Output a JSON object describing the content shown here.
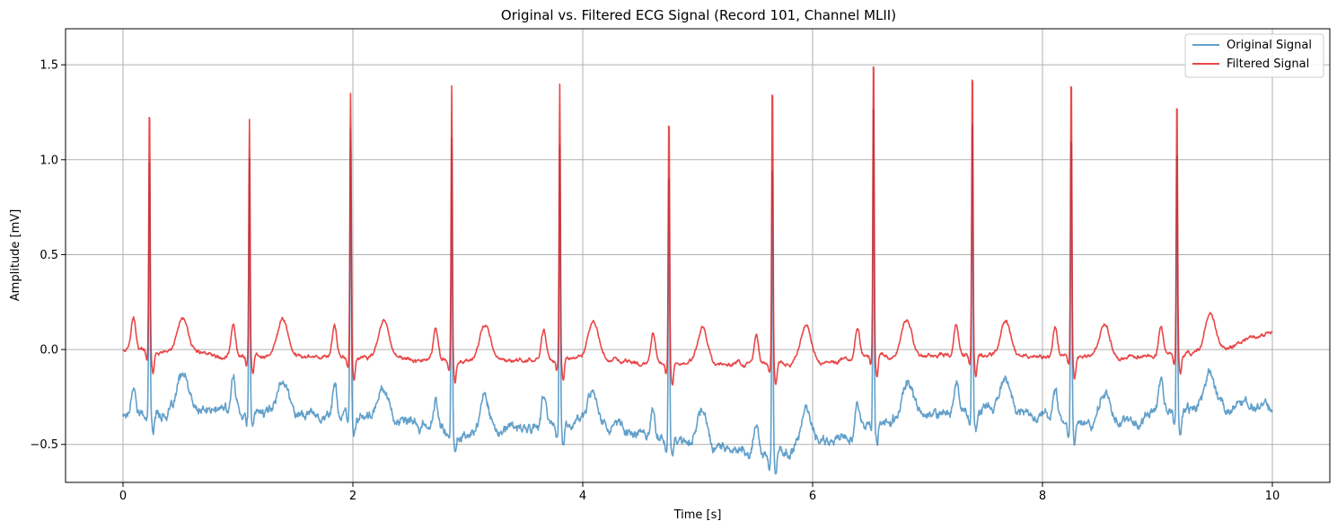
{
  "chart_data": {
    "type": "line",
    "title": "Original vs. Filtered ECG Signal (Record 101, Channel MLII)",
    "xlabel": "Time [s]",
    "ylabel": "Amplitude [mV]",
    "xlim": [
      -0.5,
      10.5
    ],
    "ylim": [
      -0.7,
      1.69
    ],
    "xticks": [
      0,
      2,
      4,
      6,
      8,
      10
    ],
    "xtick_labels": [
      "0",
      "2",
      "4",
      "6",
      "8",
      "10"
    ],
    "yticks": [
      -0.5,
      0.0,
      0.5,
      1.0,
      1.5
    ],
    "ytick_labels": [
      "−0.5",
      "0.0",
      "0.5",
      "1.0",
      "1.5"
    ],
    "grid": true,
    "legend_position": "top-right",
    "beats": {
      "times": [
        0.23,
        1.1,
        1.98,
        2.86,
        3.8,
        4.75,
        5.65,
        6.53,
        7.39,
        8.25,
        9.17
      ],
      "filtered_peaks": [
        1.32,
        1.21,
        1.35,
        1.38,
        1.4,
        1.27,
        1.43,
        1.58,
        1.51,
        1.47,
        1.35
      ],
      "original_peaks": [
        1.08,
        1.01,
        1.16,
        1.1,
        1.1,
        1.0,
        1.06,
        1.38,
        1.32,
        1.22,
        1.14
      ]
    },
    "series": [
      {
        "name": "Original Signal",
        "color": "#1f77b4",
        "opacity": 0.7,
        "baseline": [
          [
            0,
            -0.34
          ],
          [
            1.0,
            -0.32
          ],
          [
            2.0,
            -0.35
          ],
          [
            3.0,
            -0.45
          ],
          [
            4.0,
            -0.38
          ],
          [
            5.0,
            -0.5
          ],
          [
            5.7,
            -0.56
          ],
          [
            6.5,
            -0.4
          ],
          [
            7.5,
            -0.3
          ],
          [
            8.5,
            -0.4
          ],
          [
            9.3,
            -0.3
          ],
          [
            10.0,
            -0.32
          ]
        ]
      },
      {
        "name": "Filtered Signal",
        "color": "#e41a1c",
        "opacity": 0.8,
        "baseline": [
          [
            0,
            0.0
          ],
          [
            1.0,
            -0.03
          ],
          [
            2.0,
            -0.04
          ],
          [
            3.0,
            -0.06
          ],
          [
            4.0,
            -0.05
          ],
          [
            5.0,
            -0.08
          ],
          [
            5.7,
            -0.08
          ],
          [
            6.5,
            -0.04
          ],
          [
            7.5,
            -0.03
          ],
          [
            8.5,
            -0.05
          ],
          [
            9.3,
            -0.03
          ],
          [
            10.0,
            0.08
          ]
        ]
      }
    ]
  }
}
